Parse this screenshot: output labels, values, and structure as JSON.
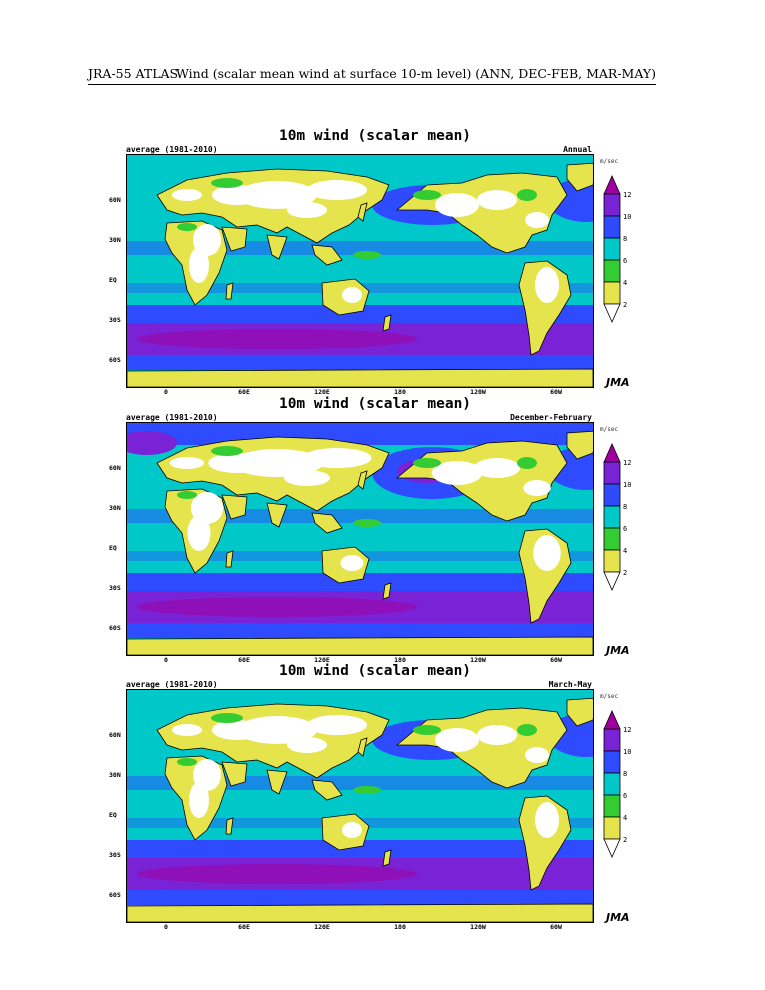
{
  "header": {
    "left": "JRA-55 ATLAS",
    "right": "Wind (scalar mean wind at surface 10-m level) (ANN, DEC-FEB, MAR-MAY)"
  },
  "colors": {
    "lt2": "#ffffff",
    "c2_4": "#e6e44c",
    "c4_6": "#33cc33",
    "c6_8": "#00c8c8",
    "c8_10": "#2e4bff",
    "c10_12": "#7a22d6",
    "gt12": "#a000a0",
    "ocean_base": "#00c8c8",
    "land_base": "#e6e44c"
  },
  "colorbar": {
    "ticks": [
      "2",
      "4",
      "6",
      "8",
      "10",
      "12"
    ]
  },
  "axes": {
    "lat_labels": [
      "60N",
      "30N",
      "EQ",
      "30S",
      "60S"
    ],
    "lon_labels": [
      "0",
      "60E",
      "120E",
      "180",
      "120W",
      "60W"
    ]
  },
  "panels": [
    {
      "title": "10m wind (scalar mean)",
      "period": "average (1981-2010)",
      "season": "Annual",
      "unit": "m/sec",
      "logo": "JMA"
    },
    {
      "title": "10m wind (scalar mean)",
      "period": "average (1981-2010)",
      "season": "December-February",
      "unit": "m/sec",
      "logo": "JMA"
    },
    {
      "title": "10m wind (scalar mean)",
      "period": "average (1981-2010)",
      "season": "March-May",
      "unit": "m/sec",
      "logo": "JMA"
    }
  ]
}
